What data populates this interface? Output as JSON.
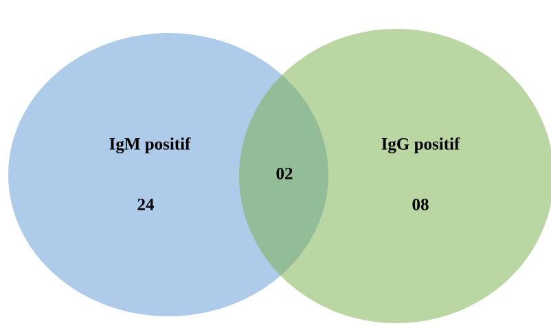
{
  "sets": [
    {
      "label": "IgM positif",
      "count": "24",
      "color": "#aecbea"
    },
    {
      "label": "IgG positif",
      "count": "08",
      "color": "#b9d6a3"
    }
  ],
  "intersection": {
    "count": "02",
    "color": "#93bd98"
  }
}
